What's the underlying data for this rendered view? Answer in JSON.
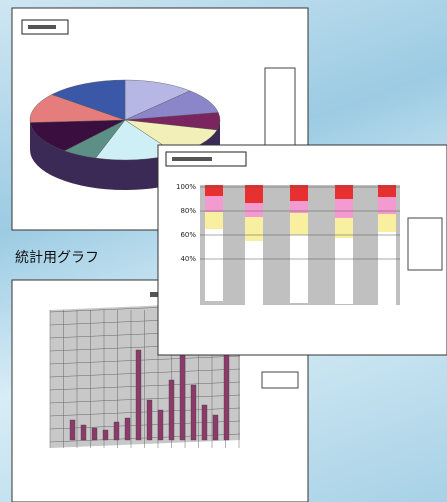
{
  "caption": "統計用グラフ",
  "stacked_chart": {
    "yticks": [
      {
        "value": 100,
        "label": "100%"
      },
      {
        "value": 80,
        "label": "80%"
      },
      {
        "value": 60,
        "label": "60%"
      },
      {
        "value": 40,
        "label": "40%"
      }
    ]
  }
}
